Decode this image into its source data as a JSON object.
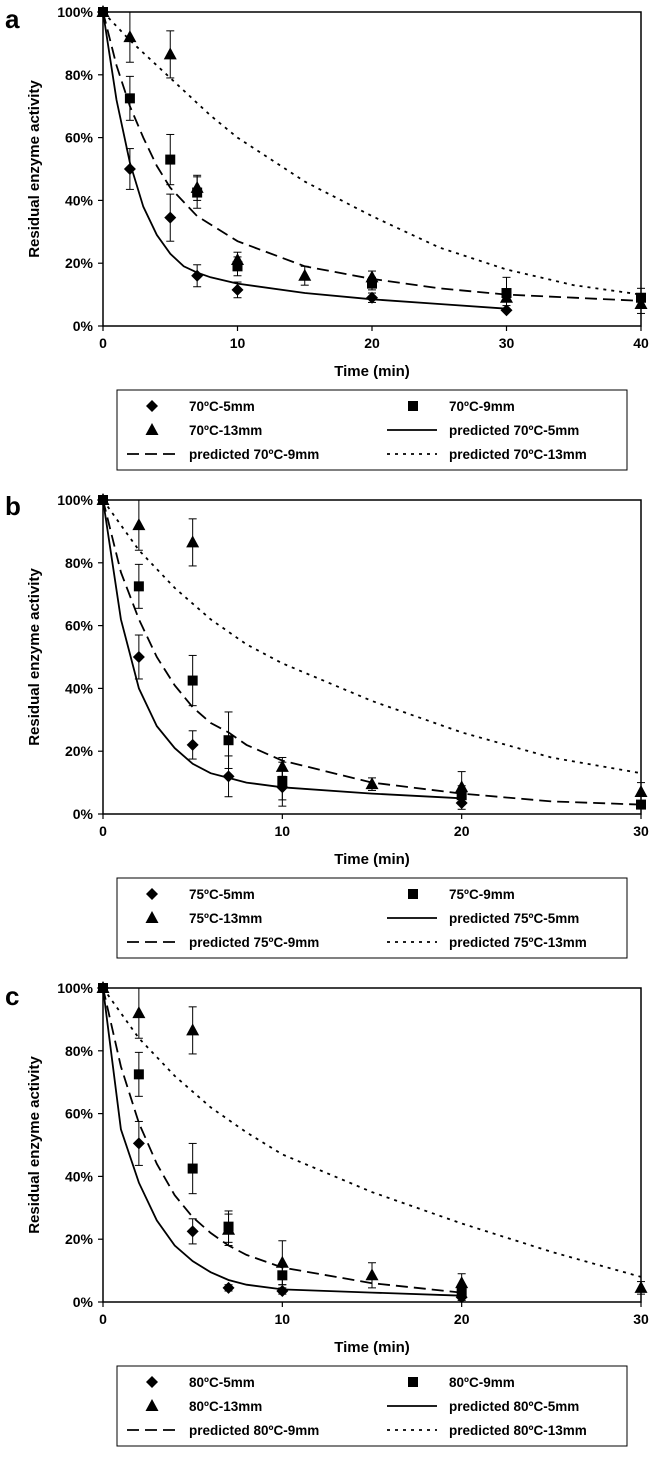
{
  "chart_data": [
    {
      "panel": "a",
      "type": "scatter",
      "xlabel": "Time (min)",
      "ylabel": "Residual enzyme activity",
      "xlim": [
        0,
        40
      ],
      "ylim": [
        0,
        100
      ],
      "xticks": [
        "0",
        "10",
        "20",
        "30",
        "40"
      ],
      "yticks": [
        "0%",
        "20%",
        "40%",
        "60%",
        "80%",
        "100%"
      ],
      "grid": false,
      "legend": {
        "placement": "below"
      },
      "series": [
        {
          "name": "70ºC-5mm",
          "marker": "diamond",
          "points": [
            [
              0,
              100
            ],
            [
              2,
              50
            ],
            [
              5,
              34.5
            ],
            [
              7,
              16
            ],
            [
              10,
              11.5
            ],
            [
              20,
              9
            ],
            [
              30,
              5
            ]
          ],
          "errors": [
            0,
            6.5,
            7.5,
            3.5,
            2.5,
            1.5,
            0
          ]
        },
        {
          "name": "70ºC-9mm",
          "marker": "square",
          "points": [
            [
              0,
              100
            ],
            [
              2,
              72.5
            ],
            [
              5,
              53
            ],
            [
              7,
              42.5
            ],
            [
              10,
              19
            ],
            [
              20,
              13.5
            ],
            [
              30,
              10.5
            ],
            [
              40,
              9
            ]
          ],
          "errors": [
            0,
            7,
            8,
            5,
            3,
            2,
            5,
            3
          ]
        },
        {
          "name": "70ºC-13mm",
          "marker": "triangle",
          "points": [
            [
              0,
              100
            ],
            [
              2,
              92
            ],
            [
              5,
              86.5
            ],
            [
              7,
              44
            ],
            [
              10,
              21
            ],
            [
              15,
              16
            ],
            [
              20,
              15.5
            ],
            [
              30,
              9
            ],
            [
              40,
              7
            ]
          ],
          "errors": [
            0,
            8,
            7.5,
            4,
            2.5,
            3,
            2,
            2.5,
            3
          ]
        },
        {
          "name": "predicted 70ºC-5mm",
          "line": "solid",
          "points": [
            [
              0,
              100
            ],
            [
              1,
              72
            ],
            [
              2,
              52
            ],
            [
              3,
              38
            ],
            [
              4,
              29
            ],
            [
              5,
              23
            ],
            [
              6,
              19
            ],
            [
              7,
              17
            ],
            [
              8,
              15.5
            ],
            [
              10,
              13.5
            ],
            [
              15,
              10.5
            ],
            [
              20,
              8.5
            ],
            [
              25,
              7
            ],
            [
              30,
              5.5
            ]
          ]
        },
        {
          "name": "predicted 70ºC-9mm",
          "line": "dashed",
          "points": [
            [
              0,
              100
            ],
            [
              1,
              83
            ],
            [
              2,
              70
            ],
            [
              3,
              60
            ],
            [
              4,
              51
            ],
            [
              5,
              44
            ],
            [
              7,
              35
            ],
            [
              10,
              27
            ],
            [
              15,
              19
            ],
            [
              20,
              15
            ],
            [
              25,
              12
            ],
            [
              30,
              10
            ],
            [
              35,
              9
            ],
            [
              40,
              8
            ]
          ]
        },
        {
          "name": "predicted 70ºC-13mm",
          "line": "dotted",
          "points": [
            [
              0,
              100
            ],
            [
              2,
              91
            ],
            [
              4,
              83
            ],
            [
              6,
              75
            ],
            [
              8,
              67
            ],
            [
              10,
              60
            ],
            [
              15,
              46
            ],
            [
              20,
              35
            ],
            [
              25,
              25
            ],
            [
              30,
              18
            ],
            [
              35,
              13
            ],
            [
              40,
              10
            ]
          ]
        }
      ]
    },
    {
      "panel": "b",
      "type": "scatter",
      "xlabel": "Time (min)",
      "ylabel": "Residual enzyme activity",
      "xlim": [
        0,
        30
      ],
      "ylim": [
        0,
        100
      ],
      "xticks": [
        "0",
        "10",
        "20",
        "30"
      ],
      "yticks": [
        "0%",
        "20%",
        "40%",
        "60%",
        "80%",
        "100%"
      ],
      "grid": false,
      "legend": {
        "placement": "below"
      },
      "series": [
        {
          "name": "75ºC-5mm",
          "marker": "diamond",
          "points": [
            [
              0,
              100
            ],
            [
              2,
              50
            ],
            [
              5,
              22
            ],
            [
              7,
              12
            ],
            [
              10,
              8.5
            ],
            [
              20,
              3.5
            ]
          ],
          "errors": [
            0,
            7,
            4.5,
            6.5,
            6,
            2
          ]
        },
        {
          "name": "75ºC-9mm",
          "marker": "square",
          "points": [
            [
              0,
              100
            ],
            [
              2,
              72.5
            ],
            [
              5,
              42.5
            ],
            [
              7,
              23.5
            ],
            [
              10,
              10.5
            ],
            [
              20,
              6
            ],
            [
              30,
              3
            ]
          ],
          "errors": [
            0,
            7,
            8,
            9,
            6,
            3,
            1
          ]
        },
        {
          "name": "75ºC-13mm",
          "marker": "triangle",
          "points": [
            [
              0,
              100
            ],
            [
              2,
              92
            ],
            [
              5,
              86.5
            ],
            [
              10,
              15
            ],
            [
              15,
              9.5
            ],
            [
              20,
              8.5
            ],
            [
              30,
              7
            ]
          ],
          "errors": [
            0,
            8,
            7.5,
            3,
            2,
            5,
            3
          ]
        },
        {
          "name": "predicted 75ºC-5mm",
          "line": "solid",
          "points": [
            [
              0,
              100
            ],
            [
              1,
              62
            ],
            [
              2,
              40
            ],
            [
              3,
              28
            ],
            [
              4,
              21
            ],
            [
              5,
              16
            ],
            [
              6,
              13
            ],
            [
              7,
              11.5
            ],
            [
              8,
              10
            ],
            [
              10,
              8.5
            ],
            [
              15,
              6.5
            ],
            [
              20,
              5
            ]
          ]
        },
        {
          "name": "predicted 75ºC-9mm",
          "line": "dashed",
          "points": [
            [
              0,
              100
            ],
            [
              1,
              77
            ],
            [
              2,
              62
            ],
            [
              3,
              50
            ],
            [
              4,
              41
            ],
            [
              5,
              34
            ],
            [
              6,
              29
            ],
            [
              7,
              26
            ],
            [
              8,
              22
            ],
            [
              10,
              17
            ],
            [
              15,
              10
            ],
            [
              20,
              6.5
            ],
            [
              25,
              4
            ],
            [
              30,
              3
            ]
          ]
        },
        {
          "name": "predicted 75ºC-13mm",
          "line": "dotted",
          "points": [
            [
              0,
              100
            ],
            [
              1,
              92
            ],
            [
              2,
              84
            ],
            [
              4,
              72
            ],
            [
              6,
              62
            ],
            [
              8,
              54
            ],
            [
              10,
              48
            ],
            [
              15,
              36
            ],
            [
              20,
              26
            ],
            [
              25,
              18
            ],
            [
              30,
              13
            ]
          ]
        }
      ]
    },
    {
      "panel": "c",
      "type": "scatter",
      "xlabel": "Time (min)",
      "ylabel": "Residual enzyme activity",
      "xlim": [
        0,
        30
      ],
      "ylim": [
        0,
        100
      ],
      "xticks": [
        "0",
        "10",
        "20",
        "30"
      ],
      "yticks": [
        "0%",
        "20%",
        "40%",
        "60%",
        "80%",
        "100%"
      ],
      "grid": false,
      "legend": {
        "placement": "below"
      },
      "series": [
        {
          "name": "80ºC-5mm",
          "marker": "diamond",
          "points": [
            [
              0,
              100
            ],
            [
              2,
              50.5
            ],
            [
              5,
              22.5
            ],
            [
              7,
              4.5
            ],
            [
              10,
              3.5
            ],
            [
              20,
              1.5
            ]
          ],
          "errors": [
            0,
            7,
            4,
            1,
            1,
            1
          ]
        },
        {
          "name": "80ºC-9mm",
          "marker": "square",
          "points": [
            [
              0,
              100
            ],
            [
              2,
              72.5
            ],
            [
              5,
              42.5
            ],
            [
              7,
              24
            ],
            [
              10,
              8.5
            ],
            [
              20,
              3
            ]
          ],
          "errors": [
            0,
            7,
            8,
            5,
            3,
            1
          ]
        },
        {
          "name": "80ºC-13mm",
          "marker": "triangle",
          "points": [
            [
              0,
              100
            ],
            [
              2,
              92
            ],
            [
              5,
              86.5
            ],
            [
              7,
              23
            ],
            [
              10,
              12.5
            ],
            [
              15,
              8.5
            ],
            [
              20,
              6
            ],
            [
              30,
              4.5
            ]
          ],
          "errors": [
            0,
            8,
            7.5,
            5,
            7,
            4,
            3,
            2
          ]
        },
        {
          "name": "predicted 80ºC-5mm",
          "line": "solid",
          "points": [
            [
              0,
              100
            ],
            [
              1,
              55
            ],
            [
              2,
              38
            ],
            [
              3,
              26
            ],
            [
              4,
              18
            ],
            [
              5,
              13
            ],
            [
              6,
              9.5
            ],
            [
              7,
              7
            ],
            [
              8,
              5.5
            ],
            [
              10,
              4
            ],
            [
              15,
              3
            ],
            [
              20,
              2
            ]
          ]
        },
        {
          "name": "predicted 80ºC-9mm",
          "line": "dashed",
          "points": [
            [
              0,
              100
            ],
            [
              1,
              75
            ],
            [
              2,
              57
            ],
            [
              3,
              44
            ],
            [
              4,
              34
            ],
            [
              5,
              27
            ],
            [
              6,
              22
            ],
            [
              7,
              18
            ],
            [
              8,
              15
            ],
            [
              10,
              11
            ],
            [
              15,
              6
            ],
            [
              20,
              3
            ]
          ]
        },
        {
          "name": "predicted 80ºC-13mm",
          "line": "dotted",
          "points": [
            [
              0,
              100
            ],
            [
              1,
              92
            ],
            [
              2,
              84
            ],
            [
              4,
              72
            ],
            [
              6,
              62
            ],
            [
              8,
              54
            ],
            [
              10,
              47
            ],
            [
              15,
              35
            ],
            [
              20,
              25
            ],
            [
              25,
              16
            ],
            [
              30,
              8
            ]
          ]
        }
      ]
    }
  ]
}
